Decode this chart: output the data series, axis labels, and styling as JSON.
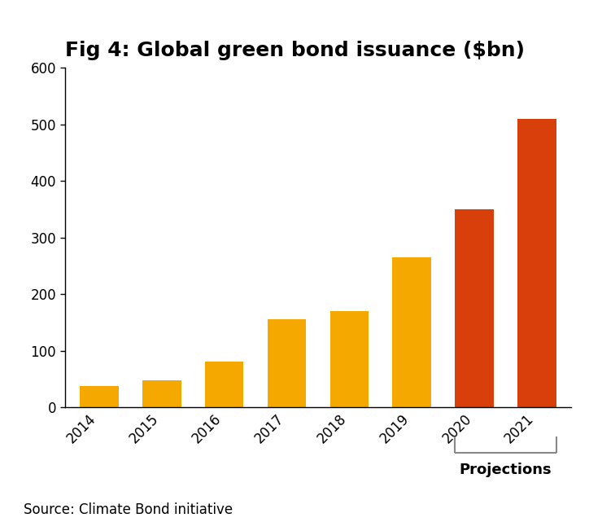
{
  "title": "Fig 4: Global green bond issuance ($bn)",
  "categories": [
    "2014",
    "2015",
    "2016",
    "2017",
    "2018",
    "2019",
    "2020",
    "2021"
  ],
  "values": [
    38,
    47,
    80,
    155,
    170,
    265,
    350,
    510
  ],
  "bar_colors": [
    "#F5A800",
    "#F5A800",
    "#F5A800",
    "#F5A800",
    "#F5A800",
    "#F5A800",
    "#D93F0B",
    "#D93F0B"
  ],
  "ylim": [
    0,
    600
  ],
  "yticks": [
    0,
    100,
    200,
    300,
    400,
    500,
    600
  ],
  "xlim": [
    -0.55,
    7.55
  ],
  "projection_label": "Projections",
  "source_text": "Source: Climate Bond initiative",
  "background_color": "#ffffff",
  "title_fontsize": 18,
  "tick_fontsize": 12,
  "source_fontsize": 12,
  "projection_fontsize": 13,
  "bar_width": 0.62
}
